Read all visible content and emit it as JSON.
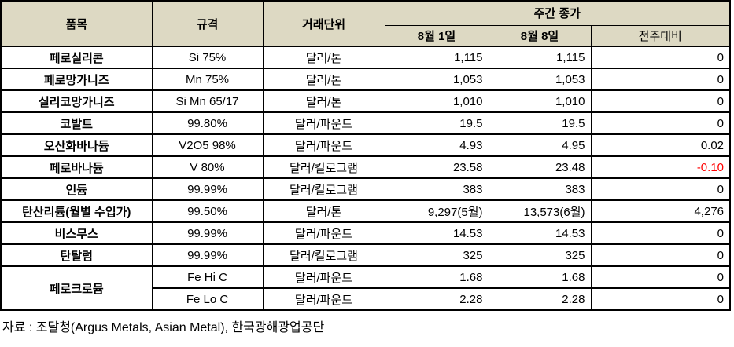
{
  "colors": {
    "header_bg": "#DDD9C3",
    "negative_text": "#FF0000",
    "border": "#000000",
    "page_bg": "#FFFFFF"
  },
  "header": {
    "col_item": "품목",
    "col_spec": "규격",
    "col_unit": "거래단위",
    "group_weekly_close": "주간 종가",
    "col_date1": "8월 1일",
    "col_date2": "8월 8일",
    "col_change": "전주대비"
  },
  "rows": [
    {
      "item": "페로실리콘",
      "item_rowspan": 1,
      "spec": "Si 75%",
      "unit": "달러/톤",
      "price1": "1,115",
      "price2": "1,115",
      "change": "0",
      "change_negative": false
    },
    {
      "item": "페로망가니즈",
      "item_rowspan": 1,
      "spec": "Mn 75%",
      "unit": "달러/톤",
      "price1": "1,053",
      "price2": "1,053",
      "change": "0",
      "change_negative": false
    },
    {
      "item": "실리코망가니즈",
      "item_rowspan": 1,
      "spec": "Si Mn 65/17",
      "unit": "달러/톤",
      "price1": "1,010",
      "price2": "1,010",
      "change": "0",
      "change_negative": false
    },
    {
      "item": "코발트",
      "item_rowspan": 1,
      "spec": "99.80%",
      "unit": "달러/파운드",
      "price1": "19.5",
      "price2": "19.5",
      "change": "0",
      "change_negative": false
    },
    {
      "item": "오산화바나듐",
      "item_rowspan": 1,
      "spec": "V2O5 98%",
      "unit": "달러/파운드",
      "price1": "4.93",
      "price2": "4.95",
      "change": "0.02",
      "change_negative": false
    },
    {
      "item": "페로바나듐",
      "item_rowspan": 1,
      "spec": "V 80%",
      "unit": "달러/킬로그램",
      "price1": "23.58",
      "price2": "23.48",
      "change": "-0.10",
      "change_negative": true
    },
    {
      "item": "인듐",
      "item_rowspan": 1,
      "spec": "99.99%",
      "unit": "달러/킬로그램",
      "price1": "383",
      "price2": "383",
      "change": "0",
      "change_negative": false
    },
    {
      "item": "탄산리튬(월별 수입가)",
      "item_rowspan": 1,
      "spec": "99.50%",
      "unit": "달러/톤",
      "price1": "9,297(5월)",
      "price2": "13,573(6월)",
      "change": "4,276",
      "change_negative": false
    },
    {
      "item": "비스무스",
      "item_rowspan": 1,
      "spec": "99.99%",
      "unit": "달러/파운드",
      "price1": "14.53",
      "price2": "14.53",
      "change": "0",
      "change_negative": false
    },
    {
      "item": "탄탈럼",
      "item_rowspan": 1,
      "spec": "99.99%",
      "unit": "달러/킬로그램",
      "price1": "325",
      "price2": "325",
      "change": "0",
      "change_negative": false
    },
    {
      "item": "페로크로뮴",
      "item_rowspan": 2,
      "spec": "Fe Hi C",
      "unit": "달러/파운드",
      "price1": "1.68",
      "price2": "1.68",
      "change": "0",
      "change_negative": false
    },
    {
      "item": null,
      "item_rowspan": 0,
      "spec": "Fe Lo C",
      "unit": "달러/파운드",
      "price1": "2.28",
      "price2": "2.28",
      "change": "0",
      "change_negative": false
    }
  ],
  "footer": {
    "source": "자료 : 조달청(Argus Metals, Asian Metal), 한국광해광업공단"
  }
}
